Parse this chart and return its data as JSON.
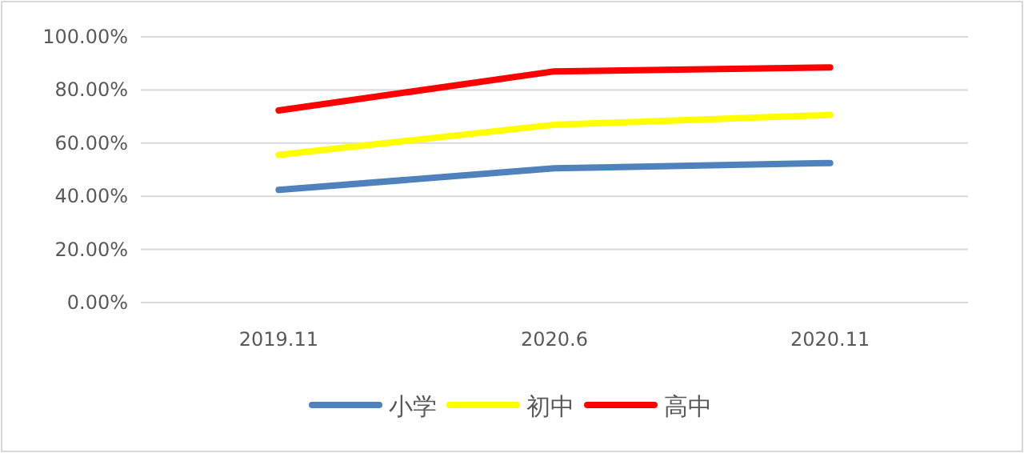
{
  "chart_data": {
    "type": "line",
    "categories": [
      "2019.11",
      "2020.6",
      "2020.11"
    ],
    "series": [
      {
        "name": "小学",
        "color": "#4f81bd",
        "values": [
          42.4,
          50.5,
          52.5
        ]
      },
      {
        "name": "初中",
        "color": "#ffff00",
        "values": [
          55.6,
          66.9,
          70.6
        ]
      },
      {
        "name": "高中",
        "color": "#ff0000",
        "values": [
          72.3,
          87,
          88.5
        ]
      }
    ],
    "ylim": [
      0,
      100
    ],
    "yticks": [
      {
        "value": 0,
        "label": "0.00%"
      },
      {
        "value": 20,
        "label": "20.00%"
      },
      {
        "value": 40,
        "label": "40.00%"
      },
      {
        "value": 60,
        "label": "60.00%"
      },
      {
        "value": 80,
        "label": "80.00%"
      },
      {
        "value": 100,
        "label": "100.00%"
      }
    ],
    "grid": "y",
    "legend": "bottom",
    "marker": "none",
    "line_style": "solid"
  }
}
